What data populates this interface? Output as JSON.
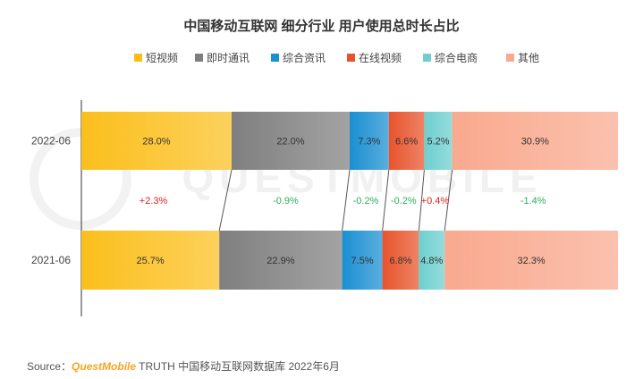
{
  "chart_data": {
    "type": "bar",
    "orientation": "horizontal",
    "stacked": "percent",
    "title": "中国移动互联网 细分行业 用户使用总时长占比",
    "categories": [
      "2022-06",
      "2021-06"
    ],
    "series": [
      {
        "name": "短视频",
        "color": "#fbbf1c",
        "values": [
          28.0,
          25.7
        ],
        "labels": [
          "28.0%",
          "25.7%"
        ]
      },
      {
        "name": "即时通讯",
        "color": "#7f7f7f",
        "values": [
          22.0,
          22.9
        ],
        "labels": [
          "22.0%",
          "22.9%"
        ]
      },
      {
        "name": "综合资讯",
        "color": "#1a8fd1",
        "values": [
          7.3,
          7.5
        ],
        "labels": [
          "7.3%",
          "7.5%"
        ]
      },
      {
        "name": "在线视频",
        "color": "#e8532b",
        "values": [
          6.6,
          6.8
        ],
        "labels": [
          "6.6%",
          "6.8%"
        ]
      },
      {
        "name": "综合电商",
        "color": "#6dcfcf",
        "values": [
          5.2,
          4.8
        ],
        "labels": [
          "5.2%",
          "4.8%"
        ]
      },
      {
        "name": "其他",
        "color": "#f9a98e",
        "values": [
          30.9,
          32.3
        ],
        "labels": [
          "30.9%",
          "32.3%"
        ]
      }
    ],
    "changes": [
      "+2.3%",
      "-0.9%",
      "-0.2%",
      "-0.2%",
      "+0.4%",
      "-1.4%"
    ],
    "change_colors": {
      "positive": "#e02020",
      "negative": "#2bb05a"
    },
    "legend_position": "top",
    "grid": false
  },
  "source": {
    "prefix": "Source：",
    "brand": "QuestMobile",
    "text": "TRUTH 中国移动互联网数据库 2022年6月"
  },
  "watermark": "QUESTMOBILE"
}
